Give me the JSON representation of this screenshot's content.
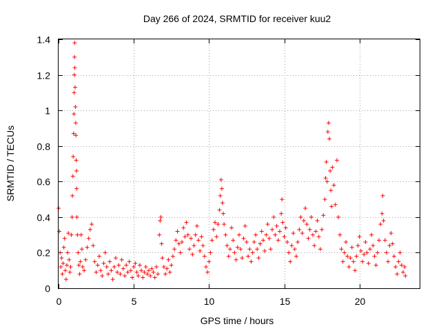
{
  "chart_data": {
    "type": "scatter",
    "title": "Day 266 of 2024, SRMTID for receiver kuu2",
    "xlabel": "GPS time / hours",
    "ylabel": "SRMTID / TECUs",
    "xlim": [
      0,
      24
    ],
    "ylim": [
      0,
      1.4
    ],
    "x_ticks": [
      0,
      5,
      10,
      15,
      20
    ],
    "x_tick_labels": [
      "0",
      "5",
      "10",
      "15",
      "20"
    ],
    "y_ticks": [
      0,
      0.2,
      0.4,
      0.6,
      0.8,
      1,
      1.2,
      1.4
    ],
    "y_tick_labels": [
      "0",
      "0.2",
      "0.4",
      "0.6",
      "0.8",
      "1",
      "1.2",
      "1.4"
    ],
    "grid": true,
    "marker": "plus",
    "color": "#ff0000",
    "series": [
      {
        "name": "SRMTID",
        "points": [
          [
            0.0,
            0.45
          ],
          [
            0.05,
            0.32
          ],
          [
            0.1,
            0.2
          ],
          [
            0.15,
            0.12
          ],
          [
            0.2,
            0.17
          ],
          [
            0.25,
            0.08
          ],
          [
            0.3,
            0.14
          ],
          [
            0.35,
            0.23
          ],
          [
            0.4,
            0.28
          ],
          [
            0.45,
            0.1
          ],
          [
            0.5,
            0.05
          ],
          [
            0.55,
            0.13
          ],
          [
            0.6,
            0.2
          ],
          [
            0.65,
            0.31
          ],
          [
            0.7,
            0.16
          ],
          [
            0.75,
            0.09
          ],
          [
            0.8,
            0.12
          ],
          [
            0.85,
            0.3
          ],
          [
            0.9,
            0.4
          ],
          [
            0.92,
            0.52
          ],
          [
            0.95,
            0.63
          ],
          [
            0.97,
            0.74
          ],
          [
            1.0,
            0.87
          ],
          [
            1.02,
            0.98
          ],
          [
            1.03,
            1.1
          ],
          [
            1.05,
            1.2
          ],
          [
            1.06,
            1.3
          ],
          [
            1.07,
            1.38
          ],
          [
            1.08,
            1.24
          ],
          [
            1.1,
            1.13
          ],
          [
            1.12,
            1.02
          ],
          [
            1.14,
            0.93
          ],
          [
            1.15,
            0.86
          ],
          [
            1.17,
            0.72
          ],
          [
            1.19,
            0.66
          ],
          [
            1.2,
            0.56
          ],
          [
            1.22,
            0.4
          ],
          [
            1.25,
            0.3
          ],
          [
            1.3,
            0.2
          ],
          [
            1.35,
            0.13
          ],
          [
            1.4,
            0.08
          ],
          [
            1.45,
            0.15
          ],
          [
            1.5,
            0.3
          ],
          [
            1.55,
            0.22
          ],
          [
            1.6,
            0.12
          ],
          [
            1.7,
            0.1
          ],
          [
            1.8,
            0.16
          ],
          [
            1.9,
            0.23
          ],
          [
            2.0,
            0.28
          ],
          [
            2.1,
            0.33
          ],
          [
            2.2,
            0.36
          ],
          [
            2.3,
            0.24
          ],
          [
            2.4,
            0.15
          ],
          [
            2.5,
            0.09
          ],
          [
            2.6,
            0.13
          ],
          [
            2.7,
            0.18
          ],
          [
            2.8,
            0.1
          ],
          [
            2.9,
            0.07
          ],
          [
            3.0,
            0.14
          ],
          [
            3.1,
            0.2
          ],
          [
            3.2,
            0.12
          ],
          [
            3.3,
            0.08
          ],
          [
            3.4,
            0.15
          ],
          [
            3.5,
            0.1
          ],
          [
            3.6,
            0.05
          ],
          [
            3.7,
            0.12
          ],
          [
            3.8,
            0.17
          ],
          [
            3.9,
            0.09
          ],
          [
            4.0,
            0.13
          ],
          [
            4.1,
            0.08
          ],
          [
            4.2,
            0.16
          ],
          [
            4.3,
            0.11
          ],
          [
            4.4,
            0.07
          ],
          [
            4.5,
            0.13
          ],
          [
            4.6,
            0.09
          ],
          [
            4.7,
            0.15
          ],
          [
            4.8,
            0.1
          ],
          [
            4.9,
            0.06
          ],
          [
            5.0,
            0.12
          ],
          [
            5.1,
            0.14
          ],
          [
            5.2,
            0.09
          ],
          [
            5.3,
            0.07
          ],
          [
            5.4,
            0.13
          ],
          [
            5.5,
            0.1
          ],
          [
            5.6,
            0.06
          ],
          [
            5.7,
            0.09
          ],
          [
            5.8,
            0.12
          ],
          [
            5.9,
            0.08
          ],
          [
            6.0,
            0.1
          ],
          [
            6.1,
            0.07
          ],
          [
            6.2,
            0.11
          ],
          [
            6.3,
            0.09
          ],
          [
            6.4,
            0.06
          ],
          [
            6.5,
            0.12
          ],
          [
            6.6,
            0.08
          ],
          [
            6.7,
            0.3
          ],
          [
            6.75,
            0.38
          ],
          [
            6.8,
            0.4
          ],
          [
            6.85,
            0.25
          ],
          [
            6.9,
            0.17
          ],
          [
            7.0,
            0.12
          ],
          [
            7.1,
            0.08
          ],
          [
            7.2,
            0.11
          ],
          [
            7.3,
            0.16
          ],
          [
            7.4,
            0.09
          ],
          [
            7.5,
            0.13
          ],
          [
            7.6,
            0.18
          ],
          [
            7.7,
            0.22
          ],
          [
            7.8,
            0.27
          ],
          [
            7.9,
            0.32
          ],
          [
            8.0,
            0.25
          ],
          [
            8.1,
            0.2
          ],
          [
            8.2,
            0.26
          ],
          [
            8.3,
            0.34
          ],
          [
            8.4,
            0.29
          ],
          [
            8.5,
            0.37
          ],
          [
            8.6,
            0.3
          ],
          [
            8.7,
            0.22
          ],
          [
            8.8,
            0.28
          ],
          [
            8.9,
            0.19
          ],
          [
            9.0,
            0.24
          ],
          [
            9.1,
            0.3
          ],
          [
            9.2,
            0.35
          ],
          [
            9.3,
            0.27
          ],
          [
            9.4,
            0.21
          ],
          [
            9.5,
            0.29
          ],
          [
            9.6,
            0.24
          ],
          [
            9.7,
            0.18
          ],
          [
            9.8,
            0.12
          ],
          [
            9.9,
            0.09
          ],
          [
            10.0,
            0.15
          ],
          [
            10.1,
            0.2
          ],
          [
            10.2,
            0.27
          ],
          [
            10.3,
            0.33
          ],
          [
            10.4,
            0.37
          ],
          [
            10.5,
            0.29
          ],
          [
            10.6,
            0.36
          ],
          [
            10.7,
            0.44
          ],
          [
            10.75,
            0.52
          ],
          [
            10.8,
            0.61
          ],
          [
            10.85,
            0.56
          ],
          [
            10.9,
            0.48
          ],
          [
            10.95,
            0.42
          ],
          [
            11.0,
            0.36
          ],
          [
            11.1,
            0.3
          ],
          [
            11.2,
            0.24
          ],
          [
            11.3,
            0.18
          ],
          [
            11.4,
            0.22
          ],
          [
            11.5,
            0.34
          ],
          [
            11.6,
            0.27
          ],
          [
            11.7,
            0.2
          ],
          [
            11.8,
            0.16
          ],
          [
            11.9,
            0.23
          ],
          [
            12.0,
            0.3
          ],
          [
            12.1,
            0.22
          ],
          [
            12.2,
            0.17
          ],
          [
            12.3,
            0.28
          ],
          [
            12.4,
            0.35
          ],
          [
            12.5,
            0.26
          ],
          [
            12.6,
            0.18
          ],
          [
            12.7,
            0.22
          ],
          [
            12.8,
            0.15
          ],
          [
            12.9,
            0.2
          ],
          [
            13.0,
            0.26
          ],
          [
            13.1,
            0.3
          ],
          [
            13.2,
            0.22
          ],
          [
            13.3,
            0.17
          ],
          [
            13.4,
            0.25
          ],
          [
            13.5,
            0.32
          ],
          [
            13.6,
            0.27
          ],
          [
            13.7,
            0.21
          ],
          [
            13.8,
            0.3
          ],
          [
            13.9,
            0.36
          ],
          [
            14.0,
            0.28
          ],
          [
            14.1,
            0.22
          ],
          [
            14.2,
            0.33
          ],
          [
            14.3,
            0.4
          ],
          [
            14.4,
            0.3
          ],
          [
            14.5,
            0.35
          ],
          [
            14.6,
            0.27
          ],
          [
            14.7,
            0.32
          ],
          [
            14.8,
            0.42
          ],
          [
            14.85,
            0.5
          ],
          [
            14.9,
            0.37
          ],
          [
            15.0,
            0.29
          ],
          [
            15.1,
            0.34
          ],
          [
            15.2,
            0.26
          ],
          [
            15.3,
            0.2
          ],
          [
            15.4,
            0.15
          ],
          [
            15.5,
            0.24
          ],
          [
            15.6,
            0.31
          ],
          [
            15.7,
            0.22
          ],
          [
            15.8,
            0.18
          ],
          [
            15.9,
            0.26
          ],
          [
            16.0,
            0.33
          ],
          [
            16.1,
            0.4
          ],
          [
            16.2,
            0.31
          ],
          [
            16.3,
            0.38
          ],
          [
            16.4,
            0.45
          ],
          [
            16.5,
            0.36
          ],
          [
            16.6,
            0.28
          ],
          [
            16.7,
            0.33
          ],
          [
            16.8,
            0.4
          ],
          [
            16.9,
            0.3
          ],
          [
            17.0,
            0.24
          ],
          [
            17.1,
            0.32
          ],
          [
            17.2,
            0.38
          ],
          [
            17.3,
            0.29
          ],
          [
            17.4,
            0.22
          ],
          [
            17.5,
            0.33
          ],
          [
            17.6,
            0.41
          ],
          [
            17.7,
            0.5
          ],
          [
            17.75,
            0.62
          ],
          [
            17.8,
            0.71
          ],
          [
            17.85,
            0.6
          ],
          [
            17.9,
            0.88
          ],
          [
            17.95,
            0.93
          ],
          [
            18.0,
            0.84
          ],
          [
            18.05,
            0.66
          ],
          [
            18.1,
            0.55
          ],
          [
            18.15,
            0.46
          ],
          [
            18.2,
            0.68
          ],
          [
            18.3,
            0.58
          ],
          [
            18.4,
            0.47
          ],
          [
            18.5,
            0.72
          ],
          [
            18.6,
            0.4
          ],
          [
            18.7,
            0.3
          ],
          [
            18.8,
            0.22
          ],
          [
            18.9,
            0.15
          ],
          [
            19.0,
            0.2
          ],
          [
            19.1,
            0.26
          ],
          [
            19.2,
            0.18
          ],
          [
            19.3,
            0.12
          ],
          [
            19.4,
            0.17
          ],
          [
            19.5,
            0.23
          ],
          [
            19.6,
            0.15
          ],
          [
            19.7,
            0.1
          ],
          [
            19.8,
            0.18
          ],
          [
            19.9,
            0.24
          ],
          [
            20.0,
            0.29
          ],
          [
            20.1,
            0.21
          ],
          [
            20.2,
            0.15
          ],
          [
            20.3,
            0.19
          ],
          [
            20.4,
            0.26
          ],
          [
            20.5,
            0.2
          ],
          [
            20.6,
            0.14
          ],
          [
            20.7,
            0.22
          ],
          [
            20.8,
            0.3
          ],
          [
            20.9,
            0.24
          ],
          [
            21.0,
            0.18
          ],
          [
            21.1,
            0.13
          ],
          [
            21.2,
            0.2
          ],
          [
            21.3,
            0.27
          ],
          [
            21.4,
            0.36
          ],
          [
            21.5,
            0.42
          ],
          [
            21.55,
            0.52
          ],
          [
            21.6,
            0.38
          ],
          [
            21.7,
            0.27
          ],
          [
            21.8,
            0.2
          ],
          [
            21.9,
            0.15
          ],
          [
            22.0,
            0.24
          ],
          [
            22.1,
            0.31
          ],
          [
            22.2,
            0.25
          ],
          [
            22.3,
            0.18
          ],
          [
            22.4,
            0.12
          ],
          [
            22.5,
            0.08
          ],
          [
            22.6,
            0.15
          ],
          [
            22.7,
            0.2
          ],
          [
            22.8,
            0.13
          ],
          [
            22.9,
            0.09
          ],
          [
            23.0,
            0.12
          ],
          [
            23.05,
            0.07
          ]
        ]
      }
    ]
  }
}
